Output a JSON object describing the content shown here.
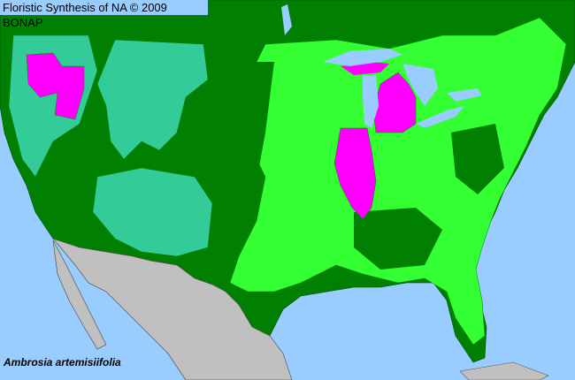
{
  "header": {
    "title": "Floristic Synthesis of NA © 2009 BONAP"
  },
  "species": {
    "name": "Ambrosia artemisiifolia"
  },
  "legend_colors": {
    "present_in_state_native": "#007f00",
    "present_in_county_native": "#33ff33",
    "present_in_state_not_reported_county": "#33cc99",
    "noxious_or_rare": "#ff00ff",
    "outside_range": "#c0c0c0",
    "water": "#99ccff"
  }
}
